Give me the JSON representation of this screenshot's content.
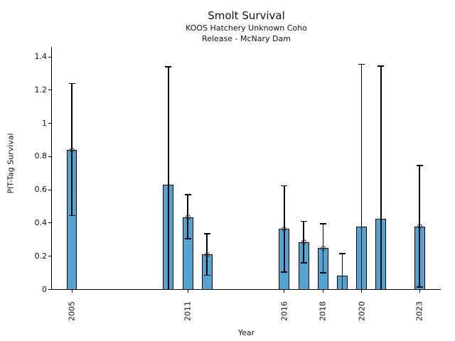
{
  "chart_data": {
    "type": "bar",
    "title": "Smolt Survival",
    "subtitle": [
      "KOOS Hatchery Unknown Coho",
      "Release - McNary Dam"
    ],
    "xlabel": "Year",
    "ylabel": "PIT-Tag Survival",
    "xlim": [
      2003.95,
      2024.1
    ],
    "ylim": [
      0,
      1.46
    ],
    "yticks": [
      0,
      0.2,
      0.4,
      0.6,
      0.8,
      1,
      1.2,
      1.4
    ],
    "ytick_labels": [
      "0",
      "0.2",
      "0.4",
      "0.6",
      "0.8",
      "1",
      "1.2",
      "1.4"
    ],
    "xtick_years": [
      2005,
      2011,
      2016,
      2018,
      2020,
      2023
    ],
    "grid": false,
    "legend": null,
    "bar_width_years": 0.55,
    "marker_style": "open-circle",
    "colors": {
      "bar_fill": "#53a4d0",
      "bar_edge": "#000000",
      "error_bar": "#000000",
      "marker_edge": "#3a3a3a",
      "axis": "#000000",
      "text": "#111111",
      "background": "#ffffff"
    },
    "bars": [
      {
        "year": 2005,
        "value": 0.84,
        "err_low": 0.445,
        "err_high": 1.24,
        "marker": true
      },
      {
        "year": 2010,
        "value": 0.63,
        "err_low": 0.0,
        "err_high": 1.34,
        "marker": false
      },
      {
        "year": 2011,
        "value": 0.435,
        "err_low": 0.305,
        "err_high": 0.57,
        "marker": true
      },
      {
        "year": 2012,
        "value": 0.21,
        "err_low": 0.085,
        "err_high": 0.335,
        "marker": true
      },
      {
        "year": 2016,
        "value": 0.365,
        "err_low": 0.105,
        "err_high": 0.625,
        "marker": true
      },
      {
        "year": 2017,
        "value": 0.285,
        "err_low": 0.16,
        "err_high": 0.41,
        "marker": true
      },
      {
        "year": 2018,
        "value": 0.25,
        "err_low": 0.1,
        "err_high": 0.395,
        "marker": true
      },
      {
        "year": 2019,
        "value": 0.085,
        "err_low": 0.0,
        "err_high": 0.215,
        "marker": false
      },
      {
        "year": 2020,
        "value": 0.38,
        "err_low": 0.0,
        "err_high": 1.355,
        "marker": false
      },
      {
        "year": 2021,
        "value": 0.425,
        "err_low": 0.0,
        "err_high": 1.345,
        "marker": false
      },
      {
        "year": 2023,
        "value": 0.38,
        "err_low": 0.015,
        "err_high": 0.745,
        "marker": true
      }
    ]
  }
}
